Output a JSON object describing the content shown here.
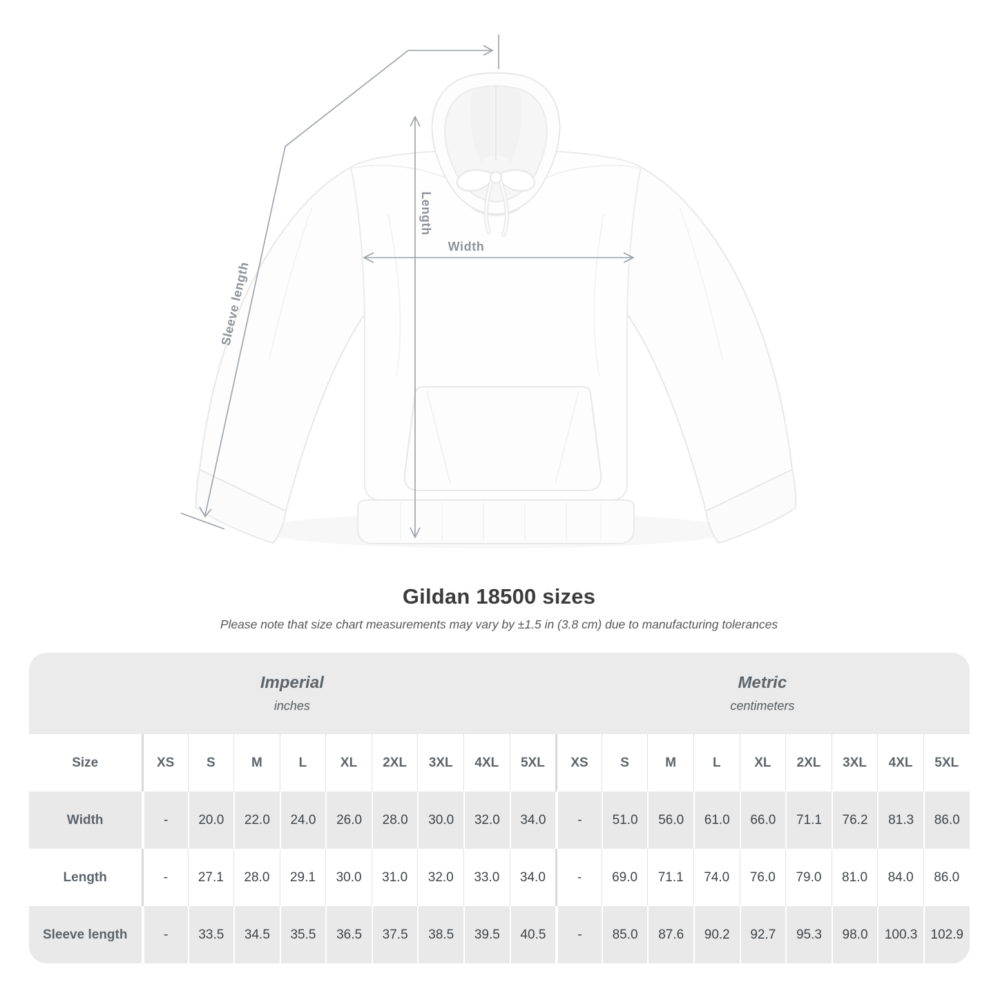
{
  "page": {
    "title": "Gildan 18500 sizes",
    "note": "Please note that size chart measurements may vary by ±1.5 in (3.8 cm) due to manufacturing tolerances"
  },
  "figure": {
    "length_label": "Length",
    "width_label": "Width",
    "sleeve_label": "Sleeve length"
  },
  "size_table": {
    "corner_label": "Size",
    "groups": [
      {
        "name": "Imperial",
        "unit": "inches"
      },
      {
        "name": "Metric",
        "unit": "centimeters"
      }
    ],
    "sizes": [
      "XS",
      "S",
      "M",
      "L",
      "XL",
      "2XL",
      "3XL",
      "4XL",
      "5XL"
    ],
    "rows": [
      {
        "label": "Width",
        "imperial": [
          "-",
          "20.0",
          "22.0",
          "24.0",
          "26.0",
          "28.0",
          "30.0",
          "32.0",
          "34.0"
        ],
        "metric": [
          "-",
          "51.0",
          "56.0",
          "61.0",
          "66.0",
          "71.1",
          "76.2",
          "81.3",
          "86.0"
        ]
      },
      {
        "label": "Length",
        "imperial": [
          "-",
          "27.1",
          "28.0",
          "29.1",
          "30.0",
          "31.0",
          "32.0",
          "33.0",
          "34.0"
        ],
        "metric": [
          "-",
          "69.0",
          "71.1",
          "74.0",
          "76.0",
          "79.0",
          "81.0",
          "84.0",
          "86.0"
        ]
      },
      {
        "label": "Sleeve length",
        "imperial": [
          "-",
          "33.5",
          "34.5",
          "35.5",
          "36.5",
          "37.5",
          "38.5",
          "39.5",
          "40.5"
        ],
        "metric": [
          "-",
          "85.0",
          "87.6",
          "90.2",
          "92.7",
          "95.3",
          "98.0",
          "100.3",
          "102.9"
        ]
      }
    ]
  },
  "colors": {
    "annotation_line": "#9aa0a6",
    "annotation_label": "#8d939a",
    "table_bg": "#ebebeb",
    "gray_row_bg": "#e9e9e9",
    "header_text": "#5c646b",
    "value_text": "#3f4347",
    "title_text": "#3b3b3b",
    "note_text": "#565656"
  }
}
